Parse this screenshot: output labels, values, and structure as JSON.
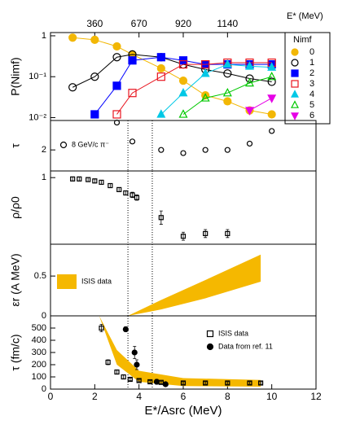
{
  "chart_data": [
    {
      "type": "line",
      "ylabel": "P(Nimf)",
      "log": true,
      "ylim": [
        0.0085,
        1.2
      ],
      "yticks": [
        1,
        {
          "value": 0.1,
          "label": "10⁻¹"
        },
        {
          "value": 0.01,
          "label": "10⁻²"
        }
      ],
      "xlim": [
        0,
        12
      ],
      "x2label": "E* (MeV)",
      "x2ticks": [
        {
          "value": 2,
          "label": "360"
        },
        {
          "value": 4,
          "label": "670"
        },
        {
          "value": 6,
          "label": "920"
        },
        {
          "value": 8,
          "label": "1140"
        }
      ],
      "legend_title": "Nimf",
      "legend": "right",
      "x": [
        1,
        2,
        3,
        3.7,
        5,
        6,
        7,
        8,
        9,
        10
      ],
      "series": [
        {
          "name": "0",
          "color": "#f2b705",
          "marker": "circle",
          "filled": true,
          "line": true,
          "values": [
            0.9,
            0.8,
            0.55,
            0.35,
            0.16,
            0.08,
            0.035,
            0.025,
            0.015,
            0.012
          ]
        },
        {
          "name": "1",
          "color": "#000000",
          "marker": "circle",
          "filled": false,
          "line": true,
          "values": [
            0.055,
            0.1,
            0.3,
            0.35,
            0.3,
            0.2,
            0.15,
            0.12,
            0.09,
            0.075
          ]
        },
        {
          "name": "2",
          "color": "#0000ff",
          "marker": "square",
          "filled": true,
          "line": true,
          "values": [
            null,
            0.012,
            0.06,
            0.25,
            0.3,
            0.25,
            0.2,
            0.2,
            0.2,
            0.2
          ]
        },
        {
          "name": "3",
          "color": "#e8141e",
          "marker": "square",
          "filled": false,
          "line": true,
          "values": [
            null,
            null,
            0.012,
            0.04,
            0.1,
            0.2,
            0.2,
            0.22,
            0.22,
            0.22
          ]
        },
        {
          "name": "4",
          "color": "#00c8e6",
          "marker": "triangle",
          "filled": true,
          "line": true,
          "values": [
            null,
            null,
            null,
            null,
            0.012,
            0.04,
            0.12,
            0.2,
            0.18,
            0.17
          ]
        },
        {
          "name": "5",
          "color": "#00c800",
          "marker": "triangle",
          "filled": false,
          "line": true,
          "values": [
            null,
            null,
            null,
            null,
            null,
            0.012,
            0.03,
            0.04,
            0.07,
            0.1
          ]
        },
        {
          "name": "6",
          "color": "#e600e6",
          "marker": "triangle-down",
          "filled": true,
          "line": true,
          "values": [
            null,
            null,
            null,
            null,
            null,
            null,
            null,
            null,
            0.015,
            0.03
          ]
        }
      ]
    },
    {
      "type": "scatter",
      "ylabel": "τ",
      "ylim": [
        1,
        3.4
      ],
      "yticks": [
        2
      ],
      "xlim": [
        0,
        12
      ],
      "vlines": [
        3.5,
        4.6
      ],
      "series": [
        {
          "name": "8 GeV/c π⁻",
          "color": "#000000",
          "marker": "circle",
          "filled": false,
          "x": [
            3,
            3.7,
            5,
            6,
            7,
            8,
            9,
            10
          ],
          "values": [
            3.3,
            2.4,
            2.0,
            1.85,
            2.0,
            2.0,
            2.3,
            2.9
          ]
        }
      ]
    },
    {
      "type": "scatter",
      "ylabel": "ρ/ρ0",
      "ylim": [
        0,
        1.1
      ],
      "yticks": [
        1
      ],
      "xlim": [
        0,
        12
      ],
      "vlines": [
        3.5,
        4.6
      ],
      "series": [
        {
          "color": "#000000",
          "marker": "square",
          "filled": false,
          "x": [
            1,
            1.3,
            1.7,
            2,
            2.3,
            2.7,
            3.1,
            3.4,
            3.7,
            3.9,
            5,
            6,
            7,
            8
          ],
          "values": [
            0.98,
            0.98,
            0.97,
            0.95,
            0.93,
            0.88,
            0.82,
            0.77,
            0.74,
            0.7,
            0.4,
            0.12,
            0.16,
            0.16
          ],
          "errors": [
            0.03,
            0.03,
            0.03,
            0.03,
            0.03,
            0.03,
            0.03,
            0.03,
            0.04,
            0.04,
            0.1,
            0.06,
            0.06,
            0.06
          ]
        }
      ]
    },
    {
      "type": "band",
      "ylabel": "εr (A MeV)",
      "ylim": [
        0,
        0.9
      ],
      "yticks": [
        0,
        0.5
      ],
      "xlim": [
        0,
        12
      ],
      "vlines": [
        3.5,
        4.6
      ],
      "series": [
        {
          "name": "ISIS data",
          "color": "#f5b800",
          "type": "band",
          "x": [
            3.5,
            5,
            7,
            9.5
          ],
          "values": [
            0,
            0.2,
            0.45,
            0.77
          ],
          "lower": [
            0,
            0.08,
            0.22,
            0.43
          ]
        }
      ]
    },
    {
      "type": "scatter",
      "ylabel": "τ (fm/c)",
      "xlabel": "E*/Asrc (MeV)",
      "ylim": [
        0,
        600
      ],
      "yticks": [
        0,
        100,
        200,
        300,
        400,
        500
      ],
      "xlim": [
        0,
        12
      ],
      "xticks": [
        0,
        2,
        4,
        6,
        8,
        10,
        12
      ],
      "vlines": [
        3.5,
        4.6
      ],
      "series": [
        {
          "color": "#f5b800",
          "type": "band",
          "x": [
            2.2,
            3,
            4,
            6,
            9.5
          ],
          "values": [
            650,
            320,
            150,
            90,
            75
          ],
          "lower": [
            620,
            200,
            60,
            25,
            20
          ]
        },
        {
          "name": "ISIS data",
          "color": "#000000",
          "marker": "square",
          "filled": false,
          "x": [
            2.3,
            2.6,
            3,
            3.3,
            3.6,
            4,
            4.5,
            5,
            6,
            7,
            8,
            9,
            9.5
          ],
          "values": [
            500,
            220,
            140,
            100,
            80,
            70,
            60,
            55,
            50,
            50,
            50,
            50,
            50
          ],
          "errors": [
            30,
            20,
            15,
            15,
            10,
            10,
            10,
            10,
            10,
            10,
            10,
            10,
            10
          ]
        },
        {
          "name": "Data from ref. 11",
          "color": "#000000",
          "marker": "circle",
          "filled": true,
          "x": [
            3.4,
            3.8,
            3.9,
            4.8,
            5.2
          ],
          "values": [
            490,
            300,
            200,
            60,
            40
          ],
          "errors": [
            20,
            50,
            40,
            20,
            15
          ]
        }
      ]
    }
  ]
}
